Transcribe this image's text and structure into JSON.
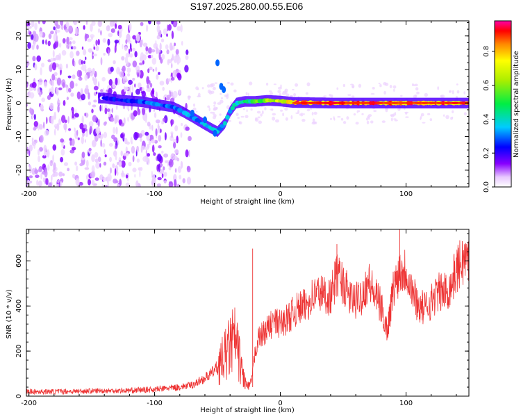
{
  "title": "S197.2025.280.00.55.E06",
  "chart_data": [
    {
      "type": "heatmap",
      "xlabel": "Height of straight line (km)",
      "ylabel": "Frequency (Hz)",
      "xlim": [
        -202,
        150
      ],
      "ylim": [
        -25,
        24.5
      ],
      "xticks": [
        -200,
        -100,
        0,
        100
      ],
      "yticks": [
        -20,
        -10,
        0,
        10,
        20
      ],
      "colorbar": {
        "label": "Normalized spectral amplitude",
        "range": [
          0,
          0.98
        ],
        "ticks": [
          0.0,
          0.2,
          0.4,
          0.6,
          0.8
        ]
      },
      "ridge_points": [
        [
          -140,
          1.5
        ],
        [
          -125,
          0.8
        ],
        [
          -110,
          0.4
        ],
        [
          -95,
          -0.6
        ],
        [
          -85,
          -1.2
        ],
        [
          -78,
          -2.5
        ],
        [
          -70,
          -4.2
        ],
        [
          -62,
          -6.0
        ],
        [
          -55,
          -7.5
        ],
        [
          -50,
          -8.5
        ],
        [
          -44,
          -6.0
        ],
        [
          -40,
          -2.5
        ],
        [
          -35,
          0.0
        ],
        [
          -28,
          0.5
        ],
        [
          -20,
          0.5
        ],
        [
          -10,
          0.8
        ],
        [
          0,
          0.6
        ],
        [
          10,
          0.2
        ],
        [
          40,
          0.0
        ],
        [
          80,
          0.0
        ],
        [
          120,
          0.0
        ],
        [
          150,
          0.0
        ]
      ],
      "ridge_strength": "increases from ~0.3 at -140 km to ~0.95 for heights above 10 km"
    },
    {
      "type": "line",
      "xlabel": "Height of straight line (km)",
      "ylabel": "SNR (10 * v/v)",
      "xlim": [
        -202,
        150
      ],
      "ylim": [
        0,
        740
      ],
      "xticks": [
        -200,
        -100,
        0,
        100
      ],
      "yticks": [
        0,
        200,
        400,
        600
      ],
      "series": [
        {
          "name": "SNR",
          "color": "#ee3333",
          "x": [
            -202,
            -180,
            -160,
            -140,
            -120,
            -100,
            -90,
            -80,
            -70,
            -60,
            -55,
            -50,
            -45,
            -42,
            -40,
            -38,
            -36,
            -34,
            -32,
            -30,
            -28,
            -26,
            -24,
            -22,
            -20,
            -18,
            -15,
            -10,
            -5,
            0,
            5,
            10,
            15,
            20,
            25,
            30,
            35,
            40,
            45,
            50,
            55,
            60,
            65,
            70,
            75,
            80,
            85,
            90,
            95,
            100,
            105,
            110,
            115,
            120,
            125,
            130,
            135,
            140,
            145,
            150
          ],
          "values": [
            20,
            20,
            22,
            24,
            25,
            30,
            35,
            40,
            50,
            80,
            100,
            130,
            170,
            200,
            220,
            240,
            250,
            200,
            150,
            100,
            60,
            40,
            50,
            100,
            200,
            250,
            270,
            300,
            330,
            320,
            340,
            370,
            390,
            400,
            440,
            460,
            450,
            440,
            540,
            500,
            440,
            420,
            450,
            510,
            450,
            400,
            290,
            480,
            560,
            560,
            470,
            400,
            390,
            420,
            460,
            460,
            480,
            560,
            600,
            610
          ]
        }
      ]
    }
  ]
}
